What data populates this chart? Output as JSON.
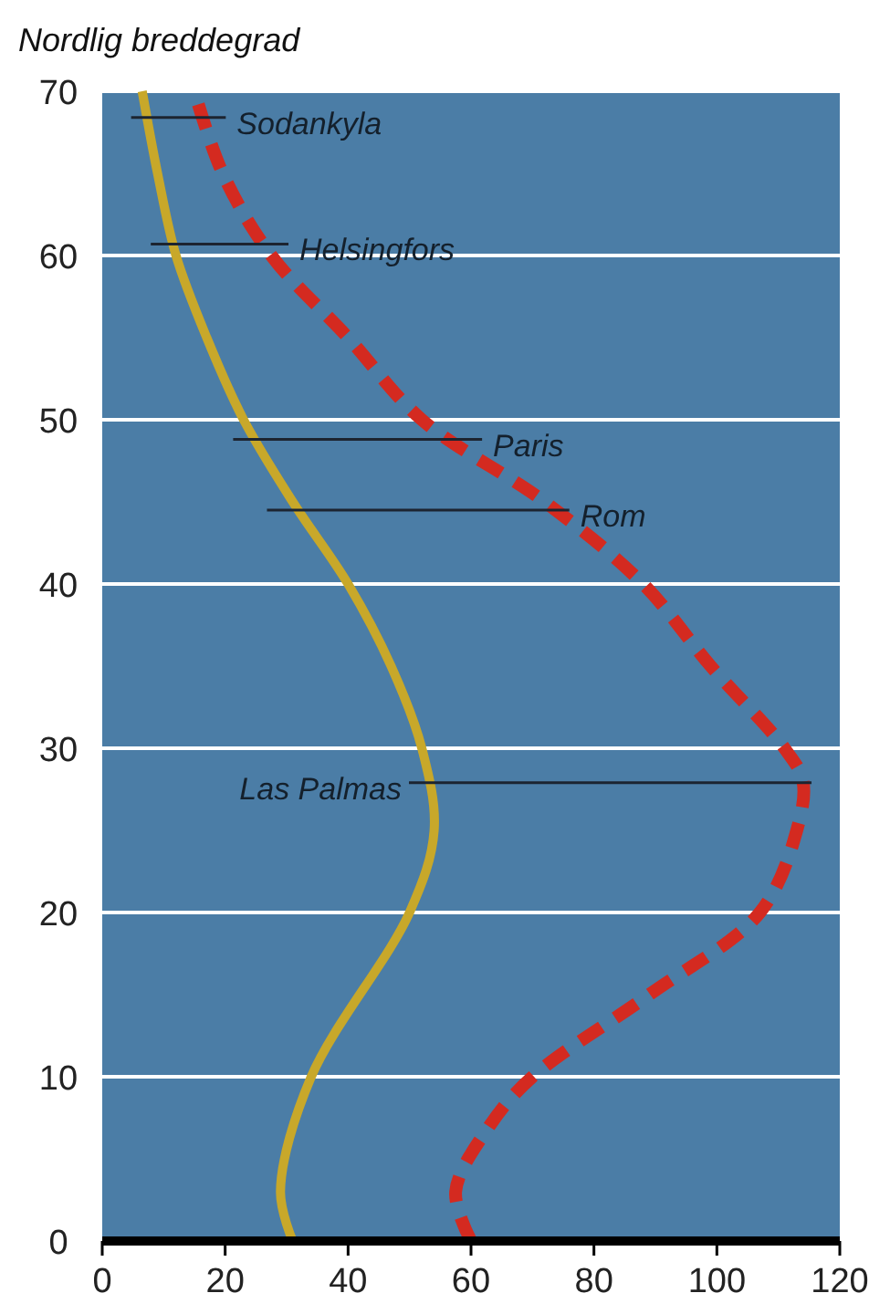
{
  "chart_data": {
    "type": "line",
    "ylabel": "Nordlig breddegrad",
    "xlim": [
      0,
      120
    ],
    "xticks": [
      0,
      20,
      40,
      60,
      80,
      100,
      120
    ],
    "ylim": [
      0,
      70
    ],
    "yticks": [
      0,
      10,
      20,
      30,
      40,
      50,
      60,
      70
    ],
    "grid": "y",
    "marker": "none",
    "series": [
      {
        "color": "#c8a82a",
        "line_style": "solid",
        "x": [
          31,
          29,
          34,
          50,
          54,
          52,
          47,
          40,
          31,
          23,
          17,
          12,
          9,
          6.5
        ],
        "values": [
          0,
          3,
          10,
          20,
          25,
          30,
          35,
          40,
          45,
          50,
          55,
          60,
          65,
          70
        ]
      },
      {
        "color": "#d42a20",
        "line_style": "dashed",
        "x": [
          60,
          57.5,
          63,
          70,
          89,
          107,
          113,
          114,
          111,
          99,
          88,
          72,
          52,
          40,
          27.5,
          19.6,
          15
        ],
        "values": [
          0,
          3,
          7,
          10,
          15,
          20,
          25,
          28,
          30,
          35,
          40,
          45,
          50,
          55,
          60,
          65,
          70
        ]
      },
      {
        "color": "#1c2430",
        "line_style": "solid",
        "x": [
          4.7,
          20.1
        ],
        "values": [
          68.4,
          68.4
        ]
      },
      {
        "color": "#1c2430",
        "line_style": "solid",
        "x": [
          7.9,
          30.3
        ],
        "values": [
          60.7,
          60.7
        ]
      },
      {
        "color": "#1c2430",
        "line_style": "solid",
        "x": [
          21.3,
          61.8
        ],
        "values": [
          48.8,
          48.8
        ]
      },
      {
        "color": "#1c2430",
        "line_style": "solid",
        "x": [
          26.8,
          76
        ],
        "values": [
          44.5,
          44.5
        ]
      },
      {
        "color": "#1c2430",
        "line_style": "solid",
        "x": [
          49.9,
          115.4
        ],
        "values": [
          27.9,
          27.9
        ]
      }
    ],
    "annotations": [
      {
        "text": "Sodankyla",
        "x": 20.1,
        "y": 68.4
      },
      {
        "text": "Helsingfors",
        "x": 30.3,
        "y": 60.7
      },
      {
        "text": "Paris",
        "x": 61.8,
        "y": 48.8
      },
      {
        "text": "Rom",
        "x": 76,
        "y": 44.5
      },
      {
        "text": "Las Palmas",
        "x": 49.9,
        "y": 27.9
      }
    ]
  }
}
